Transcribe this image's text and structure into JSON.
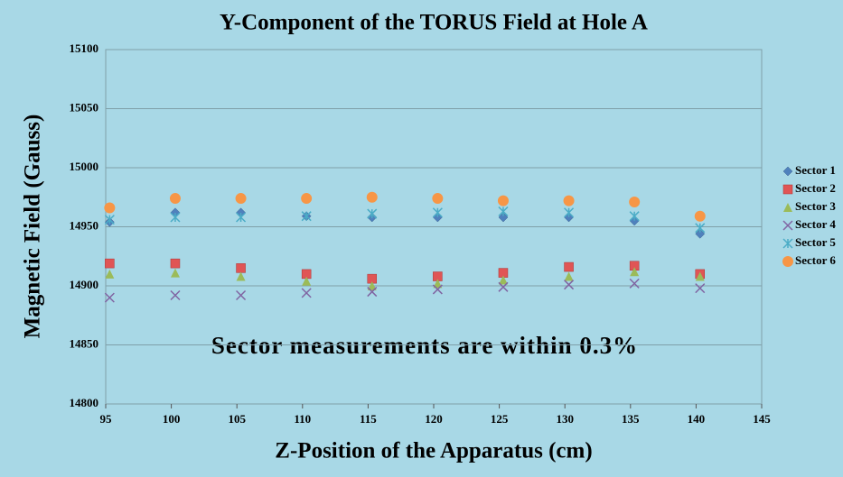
{
  "chart_data": {
    "type": "scatter",
    "title": "Y-Component of the TORUS Field at Hole A",
    "x_label": "Z-Position of the Apparatus (cm)",
    "y_label": "Magnetic Field (Gauss)",
    "annotation": "Sector measurements are within 0.3%",
    "xlim": [
      95,
      145
    ],
    "xticks": [
      95,
      100,
      105,
      110,
      115,
      120,
      125,
      130,
      135,
      140,
      145
    ],
    "ylim": [
      14800,
      15100
    ],
    "yticks": [
      14800,
      14850,
      14900,
      14950,
      15000,
      15050,
      15100
    ],
    "grid": true,
    "legend": "right",
    "x": [
      95.3,
      100.3,
      105.3,
      110.3,
      115.3,
      120.3,
      125.3,
      130.3,
      135.3,
      140.3
    ],
    "series": [
      {
        "name": "Sector 1",
        "color": "#4f81bd",
        "marker": "diamond",
        "values": [
          14954,
          14962,
          14962,
          14959,
          14958,
          14958,
          14958,
          14958,
          14955,
          14944
        ]
      },
      {
        "name": "Sector 2",
        "color": "#e05555",
        "marker": "square",
        "values": [
          14919,
          14919,
          14915,
          14910,
          14906,
          14908,
          14911,
          14916,
          14917,
          14910
        ]
      },
      {
        "name": "Sector 3",
        "color": "#9bbb59",
        "marker": "triangle",
        "values": [
          14910,
          14911,
          14908,
          14904,
          14900,
          14902,
          14905,
          14908,
          14912,
          14908
        ]
      },
      {
        "name": "Sector 4",
        "color": "#8064a2",
        "marker": "x",
        "values": [
          14890,
          14892,
          14892,
          14894,
          14895,
          14897,
          14899,
          14901,
          14902,
          14898
        ]
      },
      {
        "name": "Sector 5",
        "color": "#4bacc6",
        "marker": "star",
        "values": [
          14956,
          14958,
          14958,
          14959,
          14961,
          14962,
          14963,
          14962,
          14959,
          14949
        ]
      },
      {
        "name": "Sector 6",
        "color": "#f79646",
        "marker": "circle",
        "values": [
          14966,
          14974,
          14974,
          14974,
          14975,
          14974,
          14972,
          14972,
          14971,
          14959
        ]
      }
    ]
  }
}
